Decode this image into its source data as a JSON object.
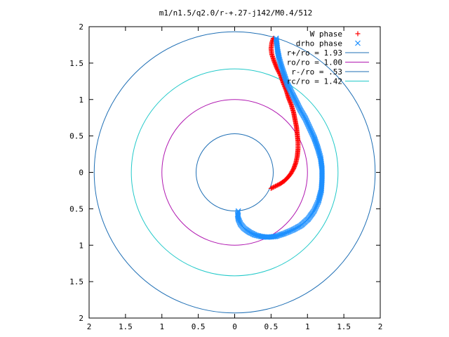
{
  "chart_data": {
    "type": "scatter",
    "title": "m1/n1.5/q2.0/r-+.27-j142/M0.4/512",
    "xlabel": "",
    "ylabel": "",
    "xlim": [
      -2,
      2
    ],
    "ylim": [
      -2,
      2
    ],
    "x_ticks": [
      -2,
      -1.5,
      -1,
      -0.5,
      0,
      0.5,
      1,
      1.5,
      2
    ],
    "y_ticks": [
      -2,
      -1.5,
      -1,
      -0.5,
      0,
      0.5,
      1,
      1.5,
      2
    ],
    "x_tick_labels": [
      "2",
      "1.5",
      "1",
      "0.5",
      "0",
      "0.5",
      "1",
      "1.5",
      "2"
    ],
    "y_tick_labels": [
      "2",
      "1.5",
      "1",
      "0.5",
      "0",
      "0.5",
      "1",
      "1.5",
      "2"
    ],
    "grid": false,
    "legend_position": "top-right",
    "circles": [
      {
        "label": "r+/ro = 1.93",
        "radius": 1.93,
        "color": "#1f6fb5"
      },
      {
        "label": "ro/ro = 1.00",
        "radius": 1.0,
        "color": "#b017b0"
      },
      {
        "label": "r-/ro = .53",
        "radius": 0.53,
        "color": "#1f6fb5"
      },
      {
        "label": "rc/ro = 1.42",
        "radius": 1.42,
        "color": "#22c9c9"
      }
    ],
    "series": [
      {
        "name": "W phase",
        "marker": "plus",
        "color": "#ff0000",
        "points": [
          [
            0.5,
            -0.22
          ],
          [
            0.56,
            -0.19
          ],
          [
            0.62,
            -0.16
          ],
          [
            0.68,
            -0.12
          ],
          [
            0.73,
            -0.07
          ],
          [
            0.77,
            -0.02
          ],
          [
            0.81,
            0.05
          ],
          [
            0.84,
            0.13
          ],
          [
            0.86,
            0.22
          ],
          [
            0.87,
            0.32
          ],
          [
            0.87,
            0.42
          ],
          [
            0.86,
            0.52
          ],
          [
            0.85,
            0.62
          ],
          [
            0.83,
            0.72
          ],
          [
            0.81,
            0.82
          ],
          [
            0.78,
            0.92
          ],
          [
            0.74,
            1.02
          ],
          [
            0.71,
            1.12
          ],
          [
            0.67,
            1.22
          ],
          [
            0.63,
            1.33
          ],
          [
            0.58,
            1.43
          ],
          [
            0.54,
            1.53
          ],
          [
            0.51,
            1.62
          ],
          [
            0.5,
            1.7
          ],
          [
            0.51,
            1.78
          ],
          [
            0.53,
            1.84
          ]
        ]
      },
      {
        "name": "drho phase",
        "marker": "cross",
        "color": "#1e90ff",
        "points": [
          [
            0.05,
            -0.53
          ],
          [
            0.04,
            -0.58
          ],
          [
            0.05,
            -0.64
          ],
          [
            0.08,
            -0.71
          ],
          [
            0.13,
            -0.77
          ],
          [
            0.2,
            -0.82
          ],
          [
            0.28,
            -0.86
          ],
          [
            0.36,
            -0.88
          ],
          [
            0.45,
            -0.89
          ],
          [
            0.56,
            -0.88
          ],
          [
            0.68,
            -0.84
          ],
          [
            0.8,
            -0.79
          ],
          [
            0.91,
            -0.73
          ],
          [
            1.01,
            -0.64
          ],
          [
            1.09,
            -0.53
          ],
          [
            1.15,
            -0.4
          ],
          [
            1.19,
            -0.25
          ],
          [
            1.2,
            -0.1
          ],
          [
            1.2,
            0.05
          ],
          [
            1.18,
            0.2
          ],
          [
            1.14,
            0.34
          ],
          [
            1.09,
            0.48
          ],
          [
            1.03,
            0.61
          ],
          [
            0.97,
            0.74
          ],
          [
            0.9,
            0.86
          ],
          [
            0.84,
            0.98
          ],
          [
            0.78,
            1.1
          ],
          [
            0.72,
            1.22
          ],
          [
            0.68,
            1.34
          ],
          [
            0.64,
            1.46
          ],
          [
            0.61,
            1.57
          ],
          [
            0.59,
            1.67
          ],
          [
            0.58,
            1.76
          ],
          [
            0.57,
            1.84
          ]
        ]
      }
    ]
  }
}
